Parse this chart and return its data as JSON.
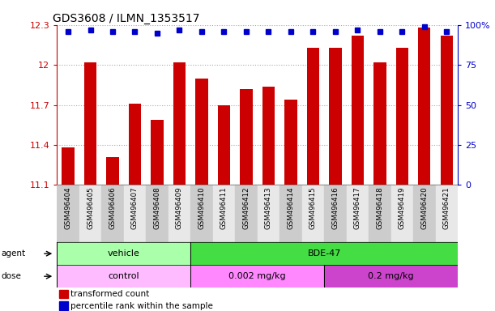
{
  "title": "GDS3608 / ILMN_1353517",
  "samples": [
    "GSM496404",
    "GSM496405",
    "GSM496406",
    "GSM496407",
    "GSM496408",
    "GSM496409",
    "GSM496410",
    "GSM496411",
    "GSM496412",
    "GSM496413",
    "GSM496414",
    "GSM496415",
    "GSM496416",
    "GSM496417",
    "GSM496418",
    "GSM496419",
    "GSM496420",
    "GSM496421"
  ],
  "bar_values": [
    11.38,
    12.02,
    11.31,
    11.71,
    11.59,
    12.02,
    11.9,
    11.7,
    11.82,
    11.84,
    11.74,
    12.13,
    12.13,
    12.22,
    12.02,
    12.13,
    12.28,
    12.22
  ],
  "percentile_values": [
    96,
    97,
    96,
    96,
    95,
    97,
    96,
    96,
    96,
    96,
    96,
    96,
    96,
    97,
    96,
    96,
    99,
    96
  ],
  "ylim_left": [
    11.1,
    12.3
  ],
  "ylim_right": [
    0,
    100
  ],
  "yticks_left": [
    11.1,
    11.4,
    11.7,
    12.0,
    12.3
  ],
  "ytick_labels_left": [
    "11.1",
    "11.4",
    "11.7",
    "12",
    "12.3"
  ],
  "yticks_right": [
    0,
    25,
    50,
    75,
    100
  ],
  "ytick_labels_right": [
    "0",
    "25",
    "50",
    "75",
    "100%"
  ],
  "bar_color": "#cc0000",
  "percentile_color": "#0000cc",
  "bar_bottom": 11.1,
  "vehicle_color": "#aaffaa",
  "bde47_color": "#44dd44",
  "control_color": "#ffbbff",
  "dose_low_color": "#ff88ff",
  "dose_high_color": "#cc44cc",
  "legend_bar_label": "transformed count",
  "legend_pct_label": "percentile rank within the sample",
  "agent_label": "agent",
  "dose_label": "dose",
  "grid_color": "#aaaaaa",
  "tick_color_left": "#cc0000",
  "tick_color_right": "#0000cc",
  "bg_color": "#ffffff",
  "title_fontsize": 10,
  "n_vehicle": 6,
  "n_bde_low": 6,
  "n_bde_high": 6
}
